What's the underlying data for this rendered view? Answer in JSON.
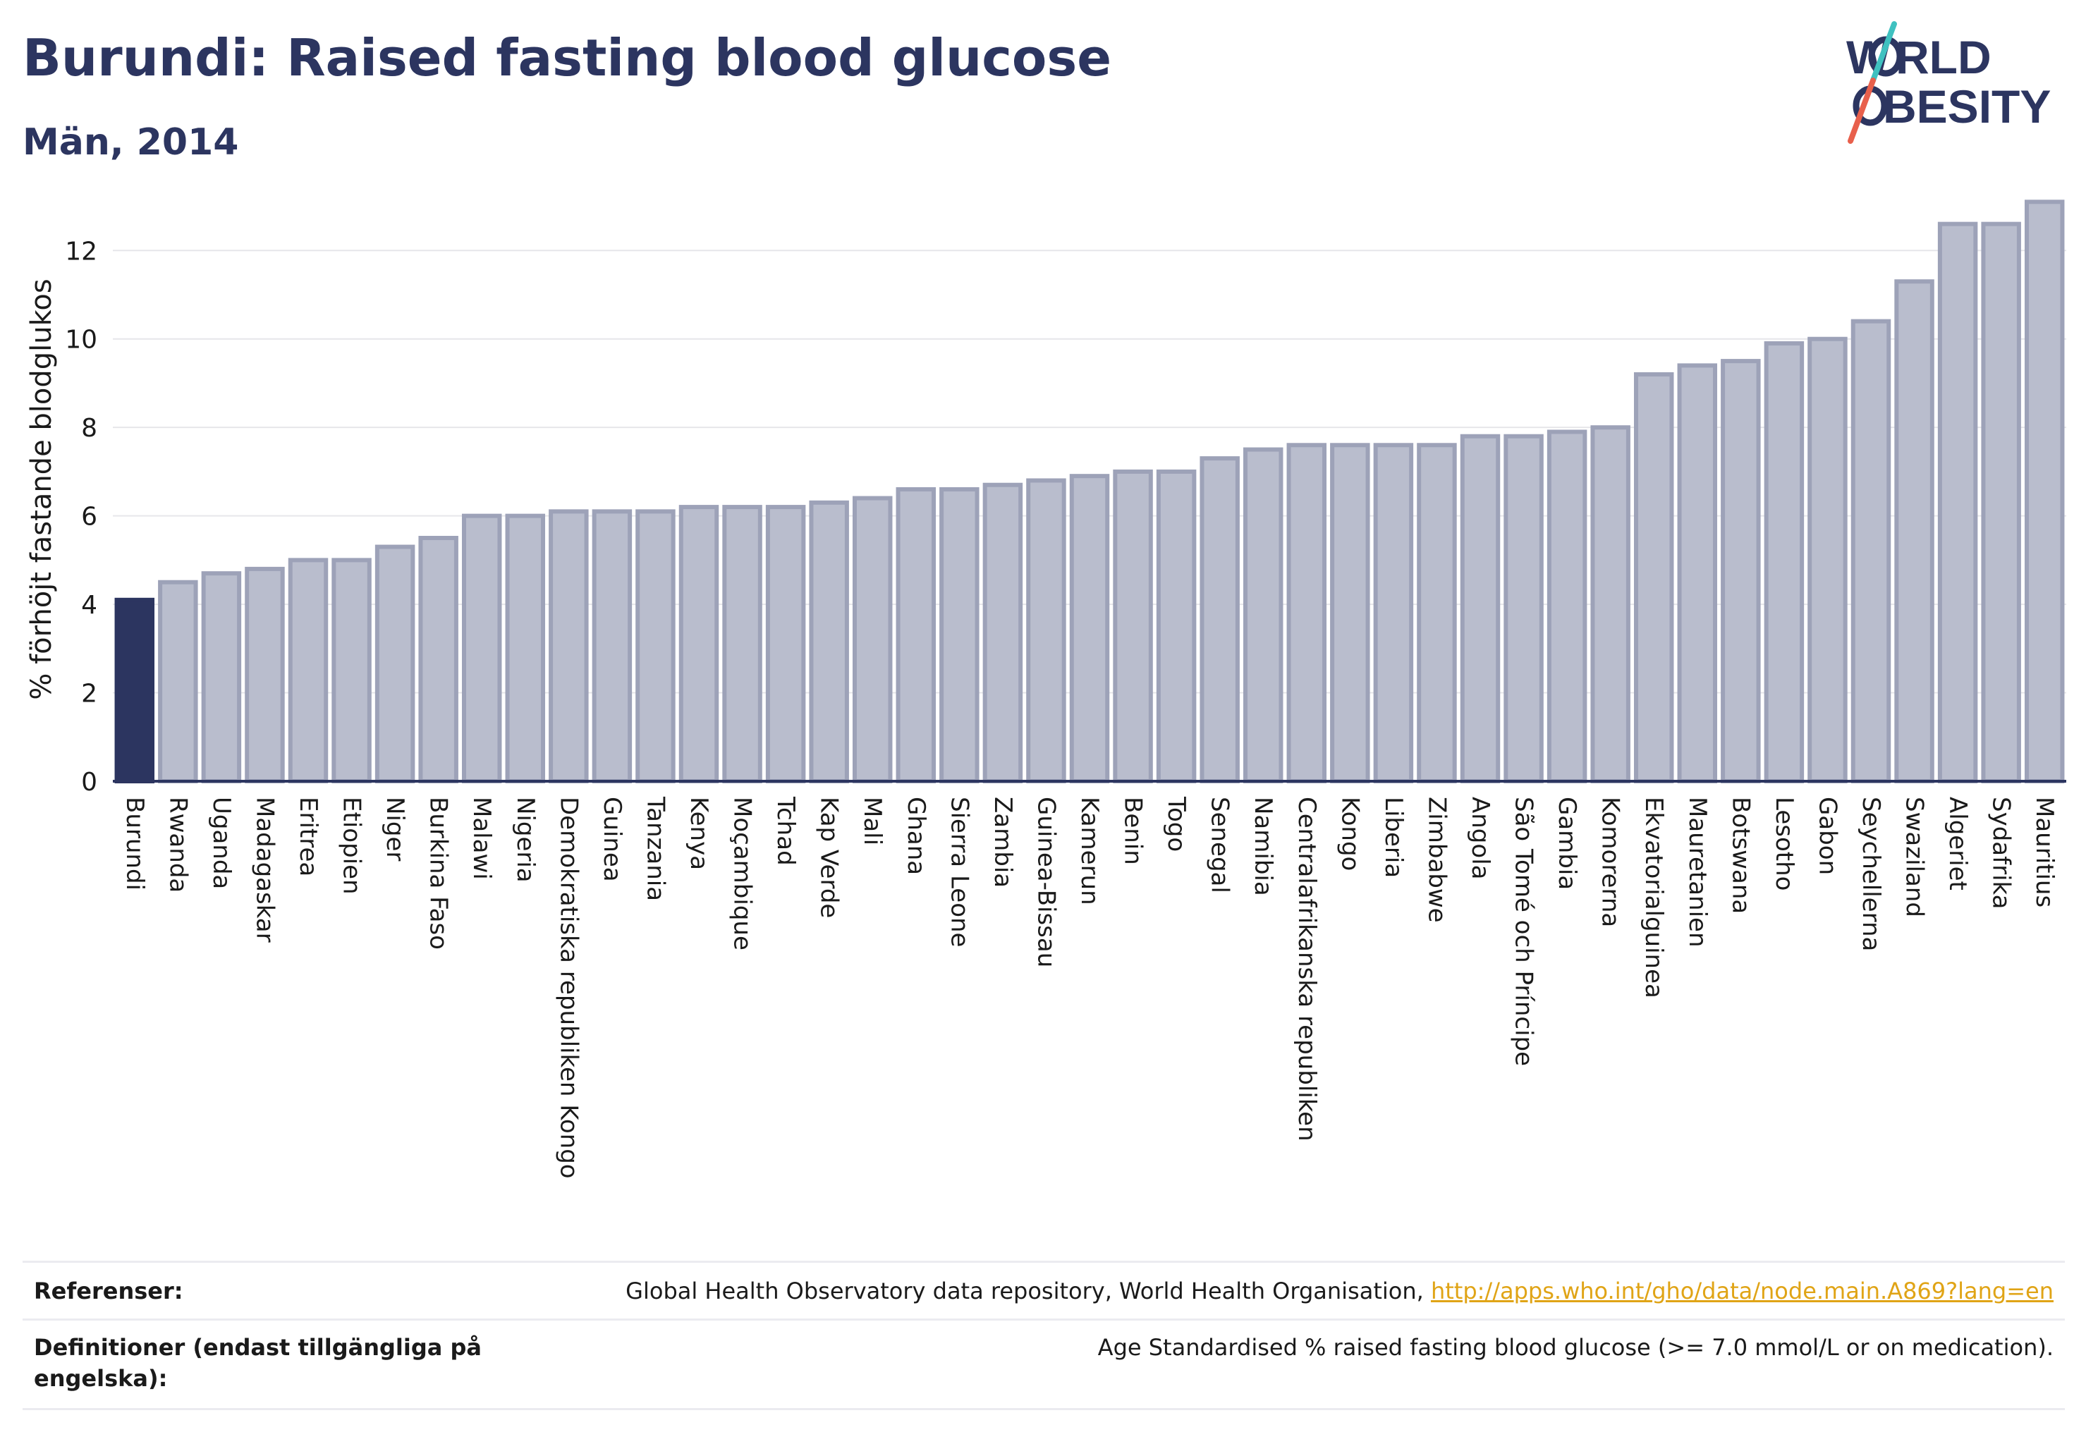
{
  "header": {
    "title": "Burundi: Raised fasting blood glucose",
    "subtitle": "Män, 2014"
  },
  "logo": {
    "line1": "WORLD",
    "line2": "OBESITY",
    "accent_teal": "#3fc1c0",
    "accent_coral": "#e8604c"
  },
  "footer": {
    "references_label": "Referenser:",
    "references_text": "Global Health Observatory data repository, World Health Organisation, ",
    "references_link": "http://apps.who.int/gho/data/node.main.A869?lang=en",
    "definitions_label": "Definitioner (endast tillgängliga på engelska):",
    "definitions_text": "Age Standardised % raised fasting blood glucose (>= 7.0 mmol/L or on medication)."
  },
  "colors": {
    "highlight": "#2c3560",
    "bar_fill": "#b9bdcd",
    "bar_stroke": "#9da2b8",
    "grid": "#e6e6ea",
    "axis": "#2c3560"
  },
  "chart_data": {
    "type": "bar",
    "title": "Burundi: Raised fasting blood glucose",
    "subtitle": "Män, 2014",
    "ylabel": "% förhöjt fastande blodglukos",
    "xlabel": "",
    "ylim": [
      0,
      13.2
    ],
    "yticks": [
      0,
      2,
      4,
      6,
      8,
      10,
      12
    ],
    "grid": true,
    "highlight": "Burundi",
    "categories": [
      "Burundi",
      "Rwanda",
      "Uganda",
      "Madagaskar",
      "Eritrea",
      "Etiopien",
      "Niger",
      "Burkina Faso",
      "Malawi",
      "Nigeria",
      "Demokratiska republiken Kongo",
      "Guinea",
      "Tanzania",
      "Kenya",
      "Moçambique",
      "Tchad",
      "Kap Verde",
      "Mali",
      "Ghana",
      "Sierra Leone",
      "Zambia",
      "Guinea-Bissau",
      "Kamerun",
      "Benin",
      "Togo",
      "Senegal",
      "Namibia",
      "Centralafrikanska republiken",
      "Kongo",
      "Liberia",
      "Zimbabwe",
      "Angola",
      "São Tomé och Príncipe",
      "Gambia",
      "Komorerna",
      "Ekvatorialguinea",
      "Mauretanien",
      "Botswana",
      "Lesotho",
      "Gabon",
      "Seychellerna",
      "Swaziland",
      "Algeriet",
      "Sydafrika",
      "Mauritius"
    ],
    "values": [
      4.1,
      4.5,
      4.7,
      4.8,
      5.0,
      5.0,
      5.3,
      5.5,
      6.0,
      6.0,
      6.1,
      6.1,
      6.1,
      6.2,
      6.2,
      6.2,
      6.3,
      6.4,
      6.6,
      6.6,
      6.7,
      6.8,
      6.9,
      7.0,
      7.0,
      7.3,
      7.5,
      7.6,
      7.6,
      7.6,
      7.6,
      7.8,
      7.8,
      7.9,
      8.0,
      9.2,
      9.4,
      9.5,
      9.9,
      10.0,
      10.4,
      11.3,
      12.6,
      12.6,
      13.1
    ]
  }
}
